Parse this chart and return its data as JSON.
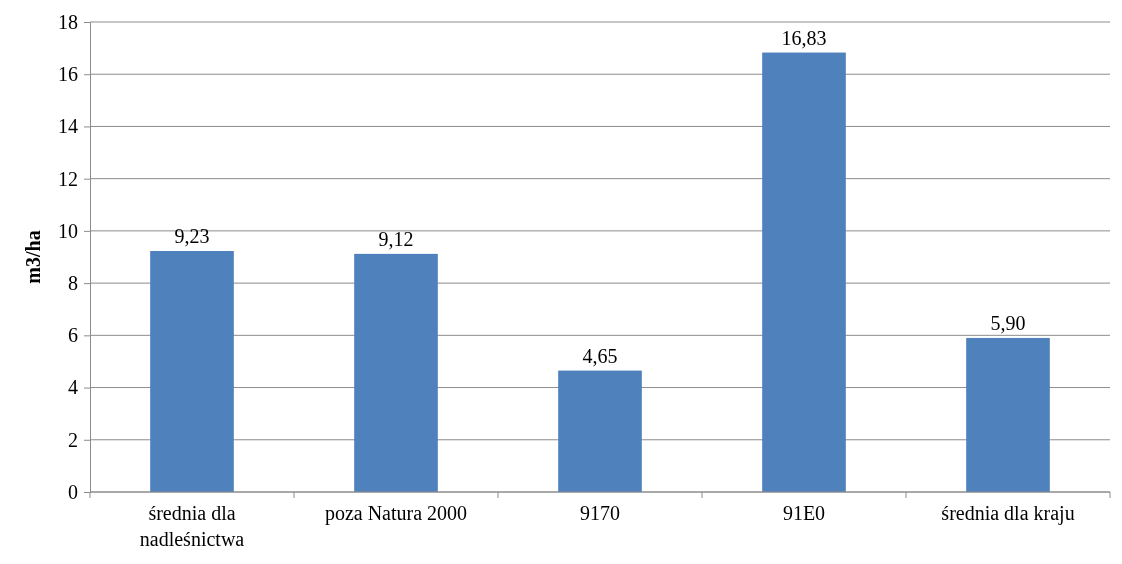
{
  "chart_data": {
    "type": "bar",
    "ylabel": "m3/ha",
    "categories": [
      "średnia dla nadleśnictwa",
      "poza Natura 2000",
      "9170",
      "91E0",
      "średnia dla kraju"
    ],
    "values": [
      9.23,
      9.12,
      4.65,
      16.83,
      5.9
    ],
    "value_labels": [
      "9,23",
      "9,12",
      "4,65",
      "16,83",
      "5,90"
    ],
    "color": "#4f81bd",
    "ylim": [
      0,
      18
    ],
    "yticks": [
      0,
      2,
      4,
      6,
      8,
      10,
      12,
      14,
      16,
      18
    ],
    "grid": "y"
  }
}
